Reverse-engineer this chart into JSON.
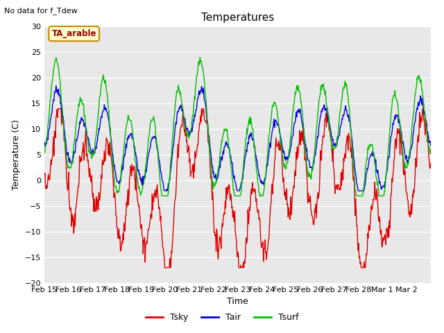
{
  "title": "Temperatures",
  "xlabel": "Time",
  "ylabel": "Temperature (C)",
  "ylim": [
    -20,
    30
  ],
  "yticks": [
    -20,
    -15,
    -10,
    -5,
    0,
    5,
    10,
    15,
    20,
    25,
    30
  ],
  "fig_bg_color": "#ffffff",
  "plot_bg_color": "#e8e8e8",
  "grid_color": "#ffffff",
  "top_note": "No data for f_Tdew",
  "label_note": "TA_arable",
  "tsky_color": "#dd0000",
  "tair_color": "#0000dd",
  "tsurf_color": "#00bb00",
  "linewidth": 1.0,
  "legend_labels": [
    "Tsky",
    "Tair",
    "Tsurf"
  ],
  "x_tick_labels": [
    "Feb 15",
    "Feb 16",
    "Feb 17",
    "Feb 18",
    "Feb 19",
    "Feb 20",
    "Feb 21",
    "Feb 22",
    "Feb 23",
    "Feb 24",
    "Feb 25",
    "Feb 26",
    "Feb 27",
    "Feb 28",
    "Mar 1",
    "Mar 2"
  ]
}
